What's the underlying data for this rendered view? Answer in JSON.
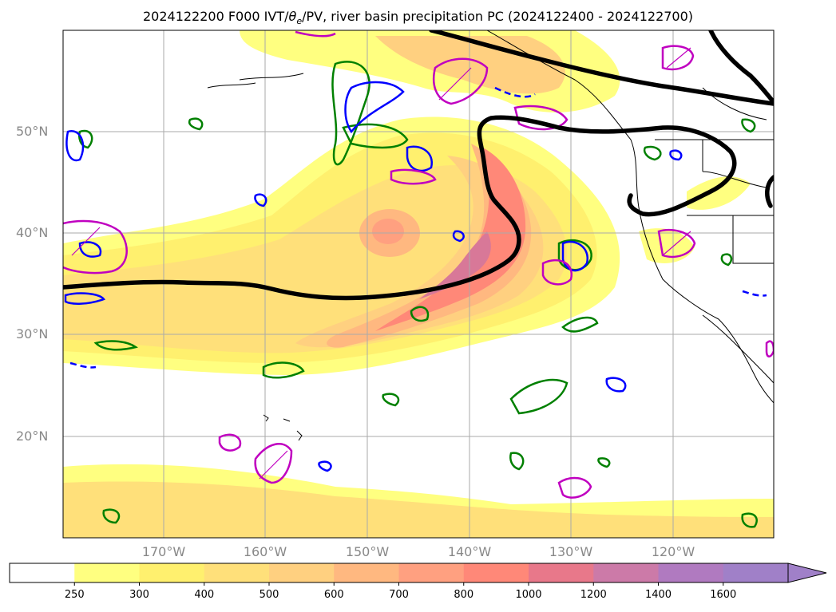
{
  "title": {
    "prefix": "2024122200 F000 IVT/",
    "theta": "θ",
    "theta_sub": "e",
    "suffix": "/PV, river basin precipitation PC (2024122400 - 2024122700)"
  },
  "lat_labels": [
    "50°N",
    "40°N",
    "30°N",
    "20°N"
  ],
  "lon_labels": [
    "170°W",
    "160°W",
    "150°W",
    "140°W",
    "130°W",
    "120°W"
  ],
  "colorbar": {
    "ticks": [
      "250",
      "300",
      "400",
      "500",
      "600",
      "700",
      "800",
      "1000",
      "1200",
      "1400",
      "1600"
    ],
    "colors": [
      "#ffffff",
      "#ffff80",
      "#fff06e",
      "#ffe07a",
      "#ffd080",
      "#ffb880",
      "#ffa080",
      "#ff8878",
      "#e8788a",
      "#cc7aa8",
      "#b07ac0",
      "#a080c8"
    ],
    "extend": "max"
  },
  "colors": {
    "ivt_low": "#ffff80",
    "ivt_mid": "#ffd57a",
    "ivt_high": "#ff8878",
    "ivt_peak": "#d87898",
    "pv_contour": "#000000",
    "precip_green": "#008000",
    "precip_blue": "#0000ff",
    "precip_magenta": "#c000c0",
    "gridline": "#aaaaaa",
    "coastline": "#000000"
  }
}
